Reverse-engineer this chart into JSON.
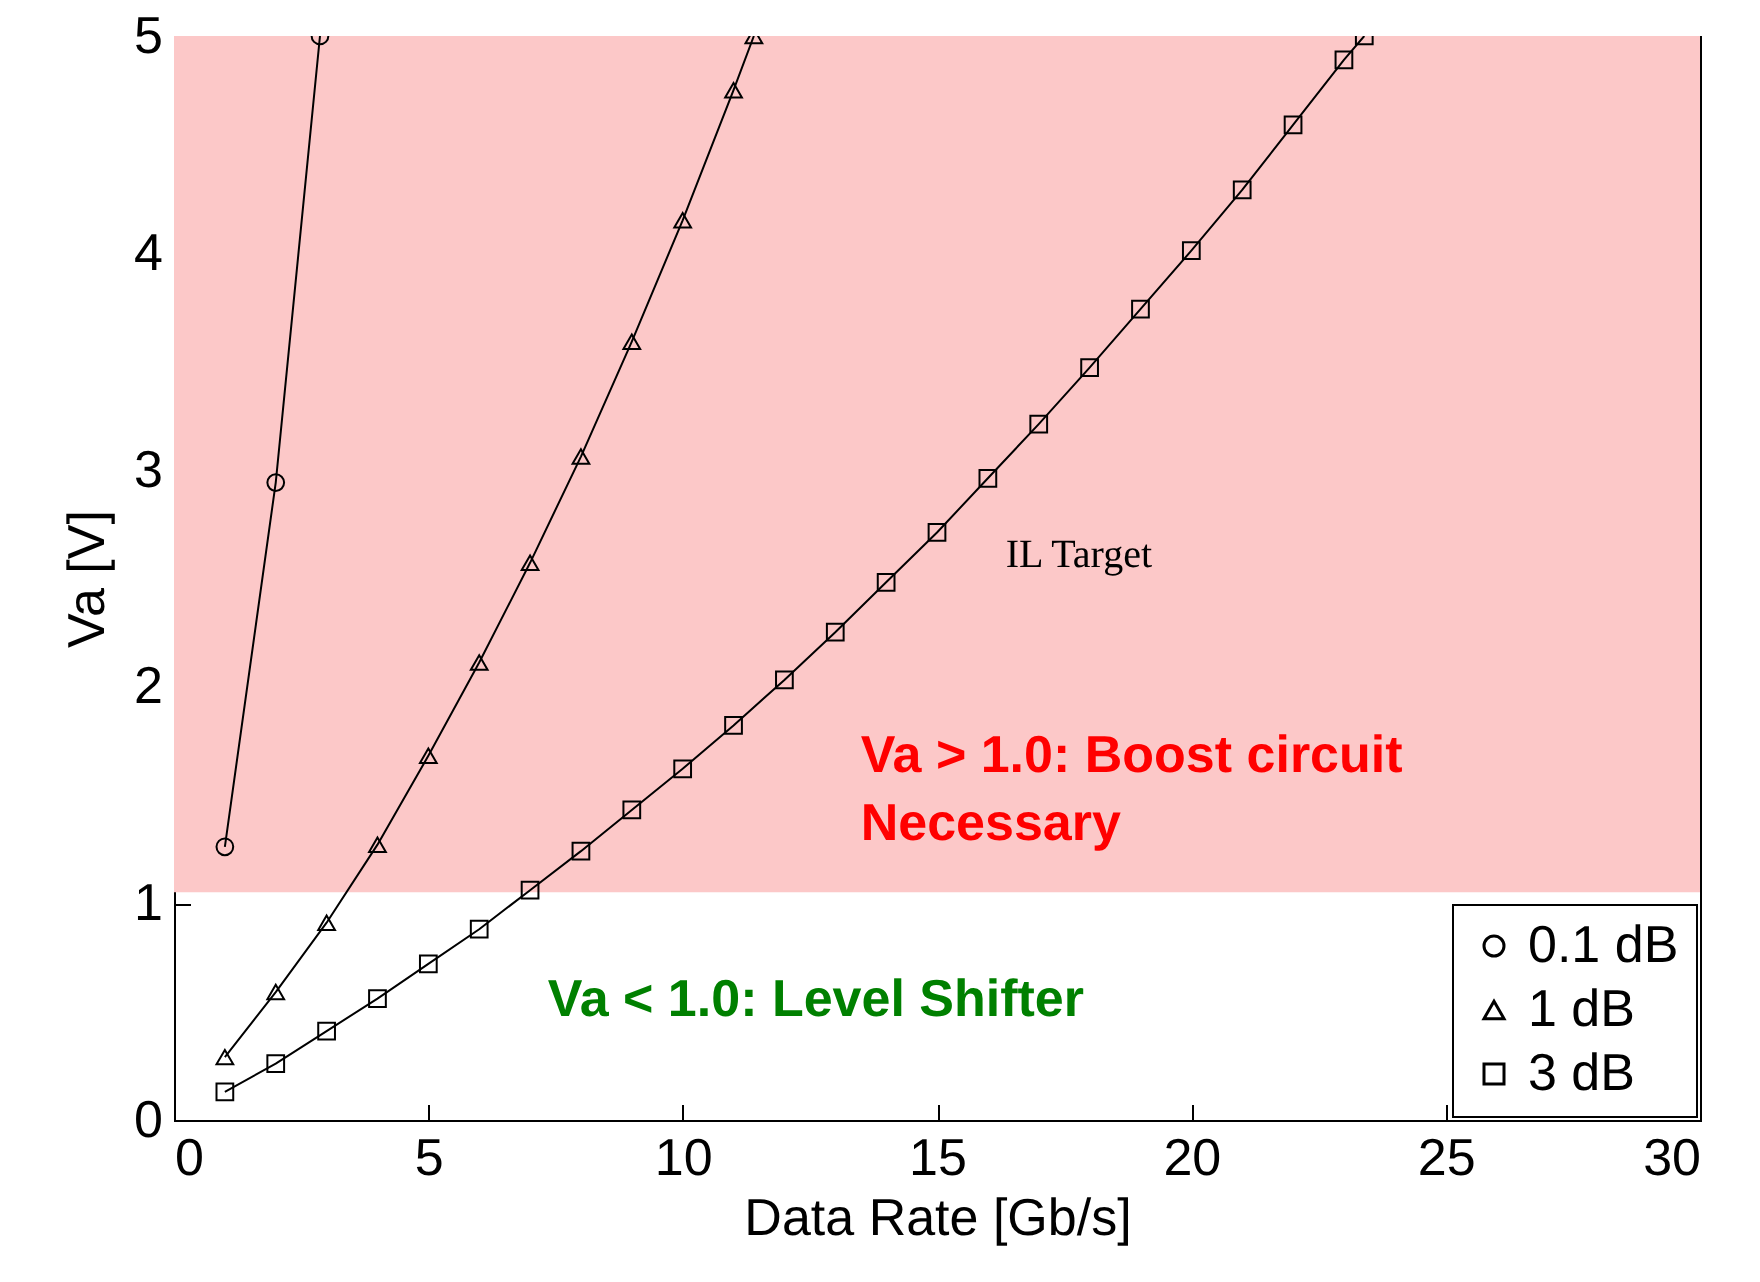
{
  "chart_data": {
    "type": "line",
    "xlabel": "Data Rate [Gb/s]",
    "ylabel": "Va [V]",
    "xlim": [
      0,
      30
    ],
    "xticks": [
      0,
      5,
      10,
      15,
      20,
      25,
      30
    ],
    "ylim": [
      0,
      5
    ],
    "yticks": [
      0,
      1,
      2,
      3,
      4,
      5
    ],
    "legend": "bottom right",
    "series": [
      {
        "name": "0.1 dB",
        "color": "#000000",
        "marker": "circle",
        "x": [
          1,
          2,
          2.87
        ],
        "values": [
          1.26,
          2.94,
          5.0
        ]
      },
      {
        "name": "1 dB",
        "color": "#000000",
        "marker": "triangle",
        "x": [
          1,
          2,
          3,
          4,
          5,
          6,
          7,
          8,
          9,
          10,
          11,
          11.4
        ],
        "values": [
          0.29,
          0.59,
          0.91,
          1.27,
          1.68,
          2.11,
          2.57,
          3.06,
          3.59,
          4.15,
          4.75,
          5.0
        ]
      },
      {
        "name": "3 dB",
        "color": "#000000",
        "marker": "square",
        "x": [
          1,
          2,
          3,
          4,
          5,
          6,
          7,
          8,
          9,
          10,
          11,
          12,
          13,
          14,
          15,
          16,
          17,
          18,
          19,
          20,
          21,
          22,
          23,
          23.4
        ],
        "values": [
          0.13,
          0.26,
          0.41,
          0.56,
          0.72,
          0.88,
          1.06,
          1.24,
          1.43,
          1.62,
          1.82,
          2.03,
          2.25,
          2.48,
          2.71,
          2.96,
          3.21,
          3.47,
          3.74,
          4.01,
          4.29,
          4.59,
          4.89,
          5.0
        ]
      }
    ],
    "bands": [
      {
        "axis": "y",
        "from": 1.05,
        "to": 5,
        "color": "#fcc8c8"
      }
    ],
    "annotations": [
      "IL Target",
      "Va > 1.0: Boost circuit\nNecessary",
      "Va < 1.0: Level Shifter"
    ]
  }
}
